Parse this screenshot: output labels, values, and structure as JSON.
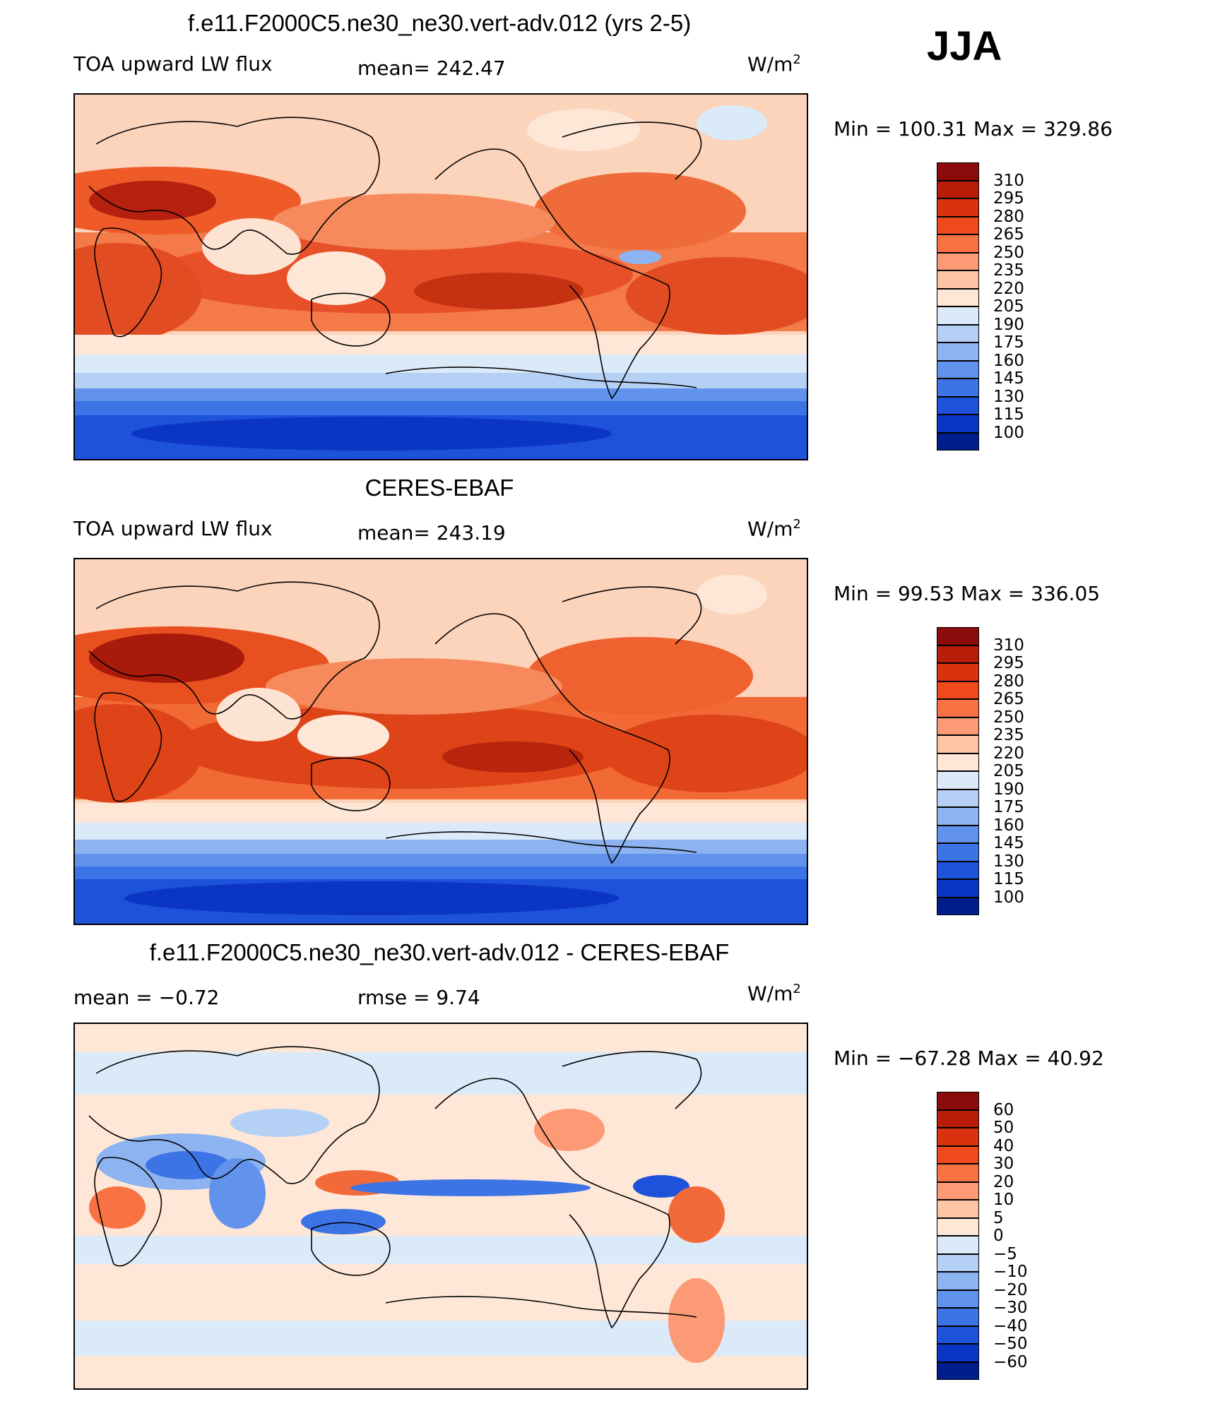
{
  "season": "JJA",
  "panels": [
    {
      "title": "f.e11.F2000C5.ne30_ne30.vert-adv.012 (yrs 2-5)",
      "left_label": "TOA upward LW flux",
      "center_label": "mean=  242.47",
      "units": "W/m",
      "units_exp": "2",
      "minmax": "Min  =  100.31  Max  =  329.86",
      "type": "field"
    },
    {
      "title": "CERES-EBAF",
      "left_label": "TOA upward LW flux",
      "center_label": "mean=  243.19",
      "units": "W/m",
      "units_exp": "2",
      "minmax": "Min  =    99.53  Max  =  336.05",
      "type": "field"
    },
    {
      "title": "f.e11.F2000C5.ne30_ne30.vert-adv.012 - CERES-EBAF",
      "left_label": "mean  =     −0.72",
      "center_label": "rmse  =      9.74",
      "units": "W/m",
      "units_exp": "2",
      "minmax": "Min  =  −67.28  Max  =     40.92",
      "type": "diff"
    }
  ],
  "colorbars": {
    "field": {
      "ticks": [
        "310",
        "295",
        "280",
        "265",
        "250",
        "235",
        "220",
        "205",
        "190",
        "175",
        "160",
        "145",
        "130",
        "115",
        "100"
      ],
      "colors": [
        "#8b0a0a",
        "#b81d0a",
        "#d8320e",
        "#ee4a1c",
        "#f87244",
        "#fb9a74",
        "#fdc4a6",
        "#fee7d6",
        "#dbeaf9",
        "#b5d0f5",
        "#8db3f0",
        "#6293ec",
        "#3c74e6",
        "#1f52db",
        "#0b36c4",
        "#001d8c"
      ]
    },
    "diff": {
      "ticks": [
        "60",
        "50",
        "40",
        "30",
        "20",
        "10",
        "5",
        "0",
        "−5",
        "−10",
        "−20",
        "−30",
        "−40",
        "−50",
        "−60"
      ],
      "colors": [
        "#8b0a0a",
        "#b81d0a",
        "#d8320e",
        "#ee4a1c",
        "#f87244",
        "#fb9a74",
        "#fdc4a6",
        "#fee7d6",
        "#dbeaf9",
        "#b5d0f5",
        "#8db3f0",
        "#6293ec",
        "#3c74e6",
        "#1f52db",
        "#0b36c4",
        "#001d8c"
      ]
    }
  }
}
